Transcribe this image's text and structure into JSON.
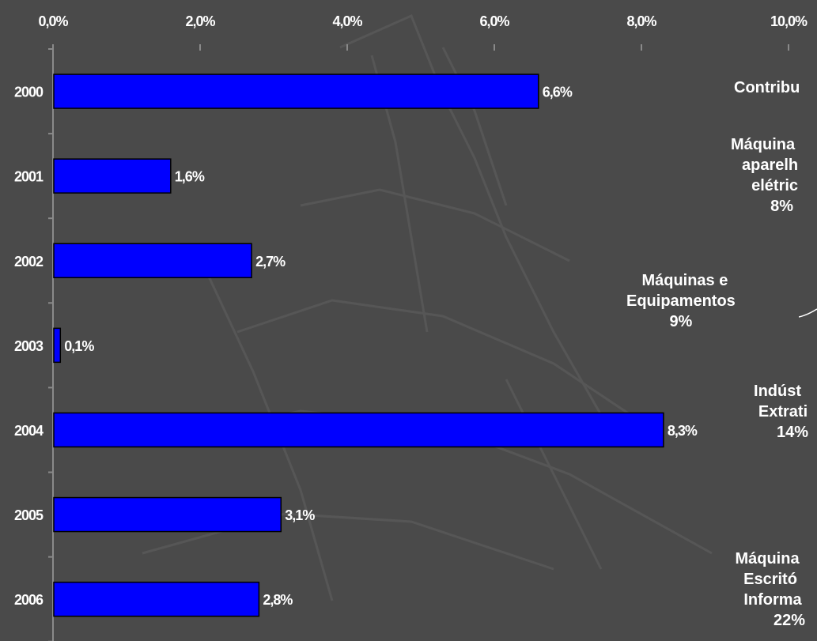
{
  "colors": {
    "background": "#4a4a4a",
    "bar": "#0000ff",
    "text": "#ffffff"
  },
  "chart_data": {
    "type": "bar",
    "orientation": "horizontal",
    "categories": [
      "2000",
      "2001",
      "2002",
      "2003",
      "2004",
      "2005",
      "2006"
    ],
    "values": [
      6.6,
      1.6,
      2.7,
      0.1,
      8.3,
      3.1,
      2.8
    ],
    "data_labels": [
      "6,6%",
      "1,6%",
      "2,7%",
      "0,1%",
      "8,3%",
      "3,1%",
      "2,8%"
    ],
    "x_ticks": [
      "0,0%",
      "2,0%",
      "4,0%",
      "6,0%",
      "8,0%",
      "10,0%"
    ],
    "xlim": [
      0,
      10
    ],
    "x_axis_position": "top",
    "grid": false
  },
  "side_panel": {
    "title": "Contribu",
    "labels": [
      [
        "Máquina",
        "aparelh",
        "elétric",
        "8%"
      ],
      [
        "Máquinas e",
        "Equipamentos",
        "9%"
      ],
      [
        "Indúst",
        "Extrati",
        "14%"
      ],
      [
        "Máquina",
        "Escritó",
        "Informa",
        "22%"
      ]
    ]
  }
}
